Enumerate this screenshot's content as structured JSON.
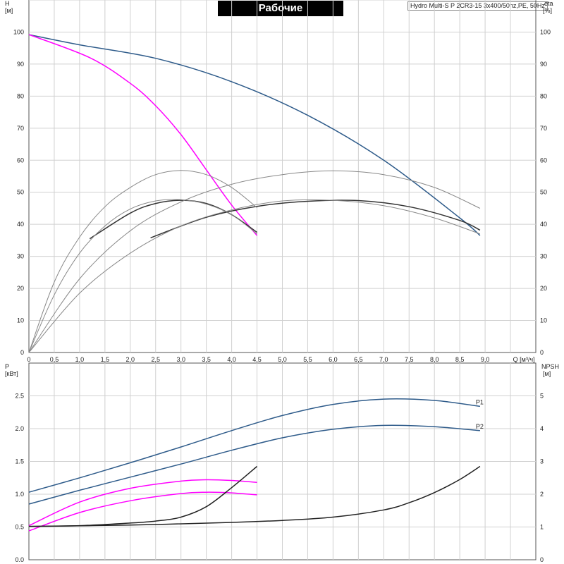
{
  "title": "Рабочие характеристики",
  "model_label": "Hydro Multi-S P 2CR3-15 3x400/50hz,PE, 50Hz",
  "chart_data": [
    {
      "type": "line",
      "panel": "head-efficiency",
      "xlabel": "Q [м³/ч]",
      "ylabel_left": [
        "H",
        "[м]"
      ],
      "ylabel_right": [
        "eta",
        "[%]"
      ],
      "xlim": [
        0,
        10
      ],
      "ylim_left": [
        0,
        110
      ],
      "ylim_right": [
        0,
        110
      ],
      "x_ticks": [
        "0",
        "0,5",
        "1,0",
        "1,5",
        "2,0",
        "2,5",
        "3,0",
        "3,5",
        "4,0",
        "4,5",
        "5,0",
        "5,5",
        "6,0",
        "6,5",
        "7,0",
        "7,5",
        "8,0",
        "8,5",
        "9,0"
      ],
      "y_ticks": [
        "0",
        "10",
        "20",
        "30",
        "40",
        "50",
        "60",
        "70",
        "80",
        "90",
        "100"
      ],
      "grid": true,
      "series": [
        {
          "color": "#2e5b8a",
          "axis": "left",
          "x": [
            0,
            1,
            2.5,
            4,
            5.5,
            7,
            8.5,
            8.9
          ],
          "y": [
            99.2,
            96,
            91.8,
            84.5,
            74,
            60,
            42,
            36.5
          ]
        },
        {
          "color": "#ff00ff",
          "axis": "left",
          "x": [
            0,
            1.2,
            2,
            2.5,
            3,
            3.5,
            4,
            4.5
          ],
          "y": [
            99.2,
            92,
            84,
            77,
            68,
            57,
            46,
            36.5
          ]
        },
        {
          "color": "#333333",
          "axis": "left",
          "x": [
            1.2,
            2,
            2.5,
            3,
            3.5,
            4,
            4.5
          ],
          "y": [
            35.5,
            43.5,
            46.5,
            47.5,
            46.5,
            43,
            37.5
          ]
        },
        {
          "color": "#333333",
          "axis": "left",
          "x": [
            2.4,
            3.5,
            4.5,
            5.5,
            6.5,
            7.5,
            8.5,
            8.9
          ],
          "y": [
            35.8,
            42.2,
            45.6,
            47.2,
            47.4,
            45.5,
            41.2,
            38.2
          ]
        },
        {
          "color": "#888888",
          "axis": "right",
          "x": [
            0,
            0.5,
            1,
            1.5,
            2,
            2.5,
            3,
            3.5,
            4,
            4.5
          ],
          "y": [
            0,
            22,
            36,
            45.5,
            51.5,
            55.5,
            56.8,
            55.5,
            51.5,
            45.2
          ]
        },
        {
          "color": "#888888",
          "axis": "right",
          "x": [
            0,
            1,
            2,
            3,
            4,
            5,
            6,
            7,
            8,
            8.9
          ],
          "y": [
            0,
            23,
            38,
            47,
            52.5,
            55.5,
            56.7,
            55.5,
            51.5,
            45
          ]
        },
        {
          "color": "#888888",
          "axis": "right",
          "x": [
            0,
            0.5,
            1,
            1.5,
            2,
            2.5,
            3,
            3.5,
            4,
            4.5
          ],
          "y": [
            0,
            18,
            31,
            39.5,
            44.8,
            47.3,
            47.7,
            46.3,
            43,
            37
          ]
        },
        {
          "color": "#888888",
          "axis": "right",
          "x": [
            0,
            1,
            2,
            3,
            4,
            5,
            6,
            7,
            8,
            8.9
          ],
          "y": [
            0,
            18.5,
            31,
            39.5,
            44.5,
            47.3,
            47.5,
            45.8,
            42,
            37
          ]
        }
      ]
    },
    {
      "type": "line",
      "panel": "power-npsh",
      "ylabel_left": [
        "P",
        "[кВт]"
      ],
      "ylabel_right": [
        "NPSH",
        "[м]"
      ],
      "xlim": [
        0,
        10
      ],
      "ylim_left": [
        0,
        3.0
      ],
      "ylim_right": [
        0,
        6
      ],
      "y_ticks_left": [
        "0.0",
        "0.5",
        "1.0",
        "1.5",
        "2.0",
        "2.5"
      ],
      "y_ticks_right": [
        "0",
        "1",
        "2",
        "3",
        "4",
        "5"
      ],
      "grid": true,
      "series": [
        {
          "name": "P1",
          "color": "#2e5b8a",
          "axis": "left",
          "x": [
            0,
            1,
            2,
            3,
            4,
            5,
            6,
            7,
            8,
            8.9
          ],
          "y": [
            1.03,
            1.25,
            1.48,
            1.72,
            1.97,
            2.2,
            2.37,
            2.45,
            2.43,
            2.34
          ]
        },
        {
          "name": "P2",
          "color": "#2e5b8a",
          "axis": "left",
          "x": [
            0,
            1,
            2,
            3,
            4,
            5,
            6,
            7,
            8,
            8.9
          ],
          "y": [
            0.85,
            1.06,
            1.26,
            1.46,
            1.67,
            1.86,
            1.99,
            2.05,
            2.03,
            1.97
          ]
        },
        {
          "color": "#ff00ff",
          "axis": "left",
          "x": [
            0,
            1,
            2,
            3,
            3.5,
            4,
            4.5
          ],
          "y": [
            0.52,
            0.88,
            1.09,
            1.2,
            1.22,
            1.21,
            1.18
          ]
        },
        {
          "color": "#ff00ff",
          "axis": "left",
          "x": [
            0,
            1,
            2,
            3,
            3.5,
            4,
            4.5
          ],
          "y": [
            0.44,
            0.72,
            0.9,
            1.01,
            1.03,
            1.02,
            0.99
          ]
        },
        {
          "color": "#222222",
          "axis": "right",
          "x": [
            0,
            1,
            2,
            2.5,
            3,
            3.5,
            4,
            4.5
          ],
          "y": [
            1.02,
            1.04,
            1.12,
            1.18,
            1.3,
            1.62,
            2.2,
            2.85
          ]
        },
        {
          "color": "#222222",
          "axis": "right",
          "x": [
            0,
            2,
            4,
            5,
            6,
            7,
            7.5,
            8,
            8.5,
            8.9
          ],
          "y": [
            1.02,
            1.06,
            1.14,
            1.2,
            1.3,
            1.52,
            1.74,
            2.05,
            2.45,
            2.85
          ]
        }
      ]
    }
  ]
}
